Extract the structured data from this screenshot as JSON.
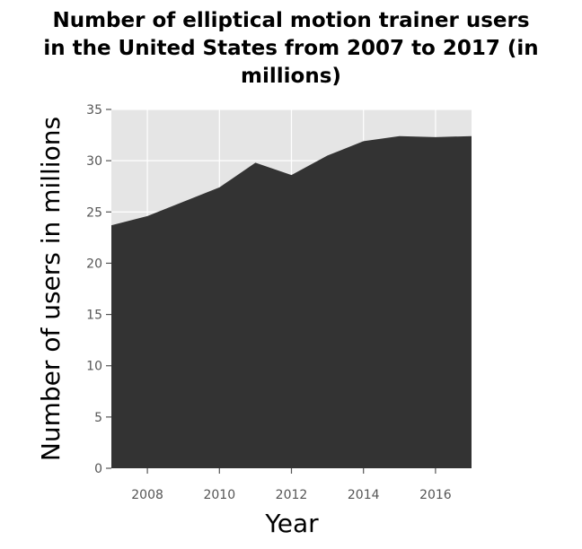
{
  "chart_data": {
    "type": "area",
    "title_lines": [
      "Number of elliptical motion trainer users",
      "in the United States from 2007 to 2017 (in",
      "millions)"
    ],
    "xlabel": "Year",
    "ylabel": "Number of users in millions",
    "x": [
      2007,
      2008,
      2009,
      2010,
      2011,
      2012,
      2013,
      2014,
      2015,
      2016,
      2017
    ],
    "values": [
      23.7,
      24.6,
      26.0,
      27.4,
      29.8,
      28.6,
      30.5,
      31.9,
      32.4,
      32.3,
      32.4
    ],
    "xlim": [
      2007,
      2017
    ],
    "ylim": [
      0,
      35
    ],
    "xticks": [
      2008,
      2010,
      2012,
      2014,
      2016
    ],
    "yticks": [
      0,
      5,
      10,
      15,
      20,
      25,
      30,
      35
    ],
    "grid": true,
    "colors": {
      "area": "#333333",
      "panel": "#e5e5e5",
      "grid": "#ffffff",
      "tick_text": "#555555"
    }
  }
}
